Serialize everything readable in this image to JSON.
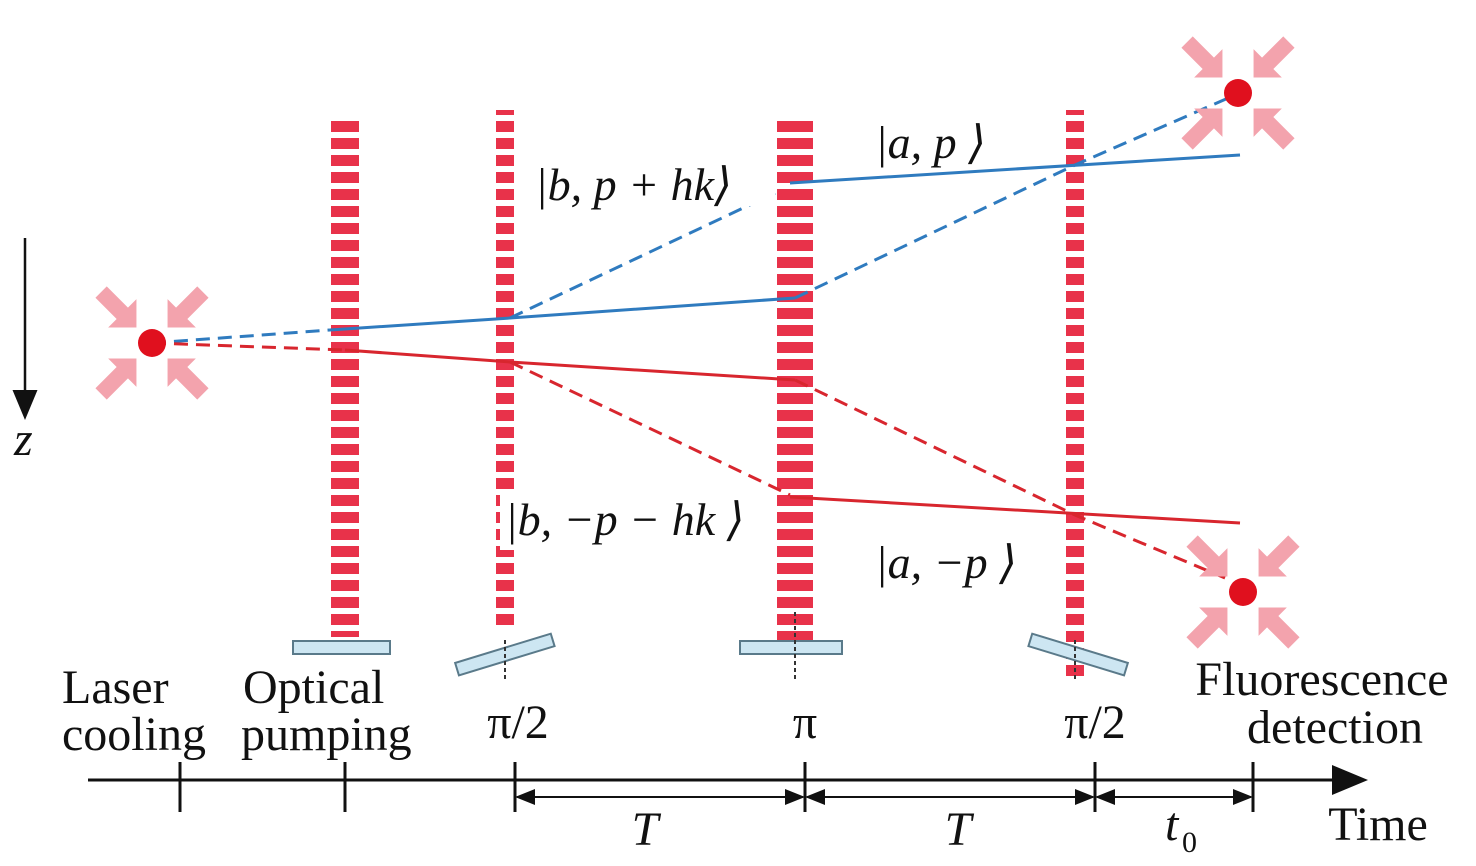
{
  "axis": {
    "z": "z",
    "time": "Time"
  },
  "states": {
    "b_plus": "|b, p + hk⟩",
    "a_plus": "|a, p ⟩",
    "b_minus": "|b, −p − hk ⟩",
    "a_minus": "|a, −p ⟩"
  },
  "stages": {
    "laser_cooling": [
      "Laser",
      "cooling"
    ],
    "optical_pumping": [
      "Optical",
      "pumping"
    ],
    "fluorescence_detection": [
      "Fluorescence",
      "detection"
    ]
  },
  "pulses": [
    "π/2",
    "π",
    "π/2"
  ],
  "intervals": {
    "first": "T",
    "second": "T",
    "third": {
      "base": "t",
      "sub": "0"
    }
  }
}
